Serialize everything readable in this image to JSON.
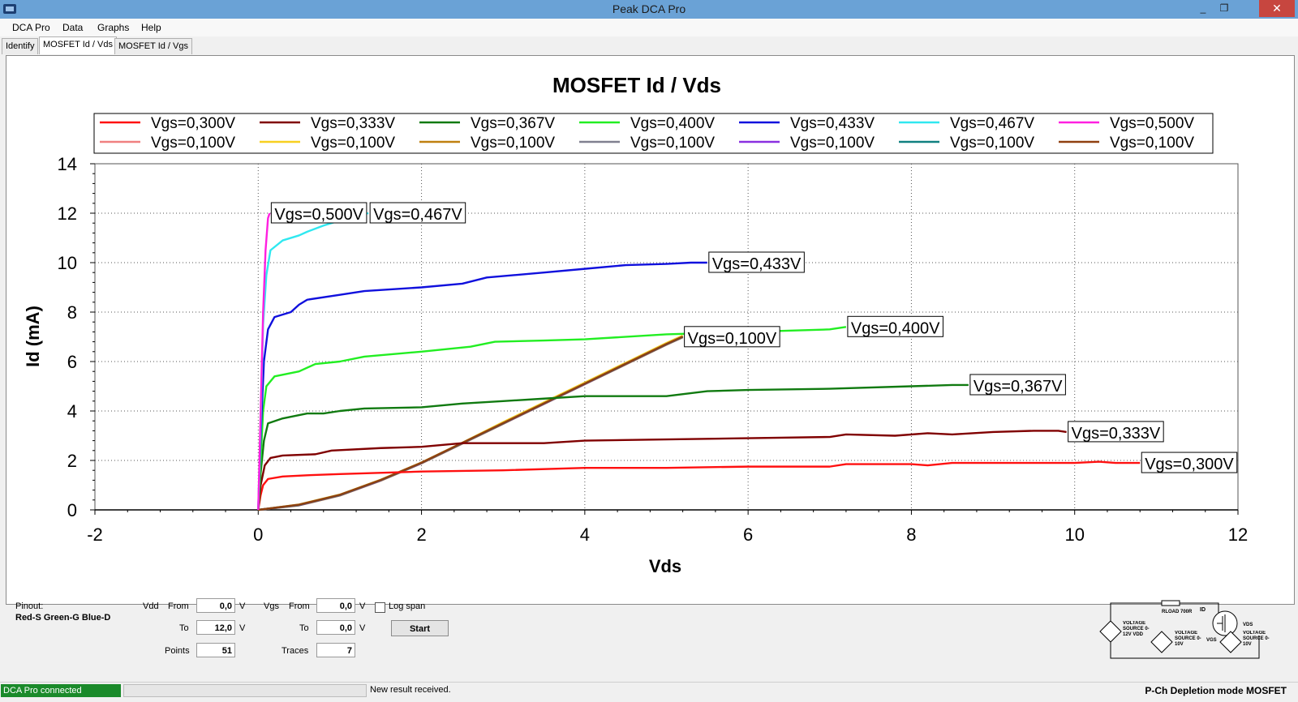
{
  "window": {
    "title": "Peak DCA Pro",
    "minimize": "_",
    "restore": "❐",
    "close": "✕"
  },
  "menu": [
    "DCA Pro",
    "Data",
    "Graphs",
    "Help"
  ],
  "tabs": [
    {
      "label": "Identify",
      "active": false
    },
    {
      "label": "MOSFET Id / Vds",
      "active": true
    },
    {
      "label": "MOSFET Id / Vgs",
      "active": false
    }
  ],
  "chart_data": {
    "type": "line",
    "title": "MOSFET Id / Vds",
    "xlabel": "Vds",
    "ylabel": "Id (mA)",
    "xlim": [
      -2,
      12
    ],
    "ylim": [
      0,
      14
    ],
    "x_ticks": [
      -2,
      0,
      2,
      4,
      6,
      8,
      10,
      12
    ],
    "y_ticks": [
      0,
      2,
      4,
      6,
      8,
      10,
      12,
      14
    ],
    "grid": true,
    "legend_position": "top",
    "series": [
      {
        "name": "Vgs=0,300V",
        "color": "#ff1010",
        "label": "Vgs=0,300V",
        "points": [
          [
            0,
            0
          ],
          [
            0.03,
            0.6
          ],
          [
            0.06,
            1.0
          ],
          [
            0.12,
            1.25
          ],
          [
            0.3,
            1.35
          ],
          [
            0.6,
            1.4
          ],
          [
            1,
            1.45
          ],
          [
            2,
            1.55
          ],
          [
            3,
            1.6
          ],
          [
            4,
            1.7
          ],
          [
            5,
            1.7
          ],
          [
            6,
            1.75
          ],
          [
            7,
            1.75
          ],
          [
            7.2,
            1.85
          ],
          [
            8,
            1.85
          ],
          [
            8.2,
            1.8
          ],
          [
            8.5,
            1.9
          ],
          [
            9,
            1.9
          ],
          [
            10,
            1.9
          ],
          [
            10.3,
            1.95
          ],
          [
            10.5,
            1.9
          ],
          [
            10.8,
            1.9
          ]
        ]
      },
      {
        "name": "Vgs=0,333V",
        "color": "#800000",
        "label": "Vgs=0,333V",
        "points": [
          [
            0,
            0
          ],
          [
            0.03,
            1.0
          ],
          [
            0.08,
            1.8
          ],
          [
            0.15,
            2.1
          ],
          [
            0.3,
            2.2
          ],
          [
            0.7,
            2.25
          ],
          [
            0.9,
            2.4
          ],
          [
            1.5,
            2.5
          ],
          [
            2,
            2.55
          ],
          [
            2.5,
            2.7
          ],
          [
            3.5,
            2.7
          ],
          [
            4,
            2.8
          ],
          [
            5,
            2.85
          ],
          [
            6,
            2.9
          ],
          [
            7,
            2.95
          ],
          [
            7.2,
            3.05
          ],
          [
            7.8,
            3.0
          ],
          [
            8.2,
            3.1
          ],
          [
            8.5,
            3.05
          ],
          [
            9,
            3.15
          ],
          [
            9.5,
            3.2
          ],
          [
            9.8,
            3.2
          ],
          [
            9.9,
            3.15
          ]
        ]
      },
      {
        "name": "Vgs=0,367V",
        "color": "#107a10",
        "label": "Vgs=0,367V",
        "points": [
          [
            0,
            0
          ],
          [
            0.03,
            1.5
          ],
          [
            0.07,
            2.8
          ],
          [
            0.12,
            3.5
          ],
          [
            0.3,
            3.7
          ],
          [
            0.6,
            3.9
          ],
          [
            0.8,
            3.9
          ],
          [
            1,
            4.0
          ],
          [
            1.3,
            4.1
          ],
          [
            2,
            4.15
          ],
          [
            2.5,
            4.3
          ],
          [
            3,
            4.4
          ],
          [
            3.5,
            4.5
          ],
          [
            4,
            4.6
          ],
          [
            5,
            4.6
          ],
          [
            5.5,
            4.8
          ],
          [
            6,
            4.85
          ],
          [
            7,
            4.9
          ],
          [
            8,
            5.0
          ],
          [
            8.5,
            5.05
          ],
          [
            8.7,
            5.05
          ]
        ]
      },
      {
        "name": "Vgs=0,400V",
        "color": "#22ee22",
        "label": "Vgs=0,400V",
        "points": [
          [
            0,
            0
          ],
          [
            0.03,
            2.0
          ],
          [
            0.06,
            4.0
          ],
          [
            0.1,
            5.0
          ],
          [
            0.2,
            5.4
          ],
          [
            0.5,
            5.6
          ],
          [
            0.7,
            5.9
          ],
          [
            1,
            6.0
          ],
          [
            1.3,
            6.2
          ],
          [
            2,
            6.4
          ],
          [
            2.6,
            6.6
          ],
          [
            2.9,
            6.8
          ],
          [
            3.5,
            6.85
          ],
          [
            4,
            6.9
          ],
          [
            5,
            7.1
          ],
          [
            6,
            7.2
          ],
          [
            7,
            7.3
          ],
          [
            7.2,
            7.4
          ]
        ]
      },
      {
        "name": "Vgs=0,433V",
        "color": "#1010dd",
        "label": "Vgs=0,433V",
        "points": [
          [
            0,
            0
          ],
          [
            0.03,
            3.0
          ],
          [
            0.07,
            6.0
          ],
          [
            0.12,
            7.3
          ],
          [
            0.2,
            7.8
          ],
          [
            0.4,
            8.0
          ],
          [
            0.5,
            8.3
          ],
          [
            0.6,
            8.5
          ],
          [
            1,
            8.7
          ],
          [
            1.3,
            8.85
          ],
          [
            2,
            9.0
          ],
          [
            2.5,
            9.15
          ],
          [
            2.8,
            9.4
          ],
          [
            3.5,
            9.6
          ],
          [
            4,
            9.75
          ],
          [
            4.5,
            9.9
          ],
          [
            5,
            9.95
          ],
          [
            5.3,
            10.0
          ],
          [
            5.5,
            10.0
          ]
        ]
      },
      {
        "name": "Vgs=0,467V",
        "color": "#30e8f0",
        "label": "Vgs=0,467V",
        "points": [
          [
            0,
            0
          ],
          [
            0.03,
            3.5
          ],
          [
            0.06,
            7.5
          ],
          [
            0.1,
            9.5
          ],
          [
            0.15,
            10.5
          ],
          [
            0.3,
            10.9
          ],
          [
            0.5,
            11.1
          ],
          [
            0.6,
            11.25
          ],
          [
            0.8,
            11.5
          ],
          [
            1,
            11.7
          ],
          [
            1.1,
            11.85
          ],
          [
            1.35,
            12.0
          ]
        ]
      },
      {
        "name": "Vgs=0,500V",
        "color": "#ff20e0",
        "label": "Vgs=0,500V",
        "points": [
          [
            0,
            0
          ],
          [
            0.03,
            4.0
          ],
          [
            0.06,
            8.0
          ],
          [
            0.09,
            10.5
          ],
          [
            0.12,
            11.8
          ],
          [
            0.14,
            12.0
          ]
        ]
      },
      {
        "name": "Vgs=0,100V",
        "color": "#f08080",
        "label": "Vgs=0,100V",
        "points": [
          [
            0,
            0
          ],
          [
            0.5,
            0.2
          ],
          [
            1,
            0.6
          ],
          [
            1.5,
            1.2
          ],
          [
            2,
            1.9
          ],
          [
            2.5,
            2.7
          ],
          [
            3,
            3.5
          ],
          [
            3.5,
            4.3
          ],
          [
            4,
            5.1
          ],
          [
            4.5,
            5.9
          ],
          [
            5,
            6.7
          ],
          [
            5.2,
            7.0
          ]
        ]
      },
      {
        "name": "Vgs=0,100V",
        "color": "#f8d020",
        "label": "Vgs=0,100V",
        "points": [
          [
            0,
            0
          ],
          [
            0.5,
            0.22
          ],
          [
            1,
            0.62
          ],
          [
            1.5,
            1.22
          ],
          [
            2,
            1.92
          ],
          [
            2.5,
            2.72
          ],
          [
            3,
            3.55
          ],
          [
            3.5,
            4.35
          ],
          [
            4,
            5.15
          ],
          [
            4.5,
            5.95
          ],
          [
            5,
            6.75
          ],
          [
            5.2,
            7.05
          ]
        ]
      },
      {
        "name": "Vgs=0,100V",
        "color": "#c08010",
        "label": "Vgs=0,100V",
        "points": [
          [
            0,
            0
          ],
          [
            0.5,
            0.18
          ],
          [
            1,
            0.58
          ],
          [
            1.5,
            1.18
          ],
          [
            2,
            1.88
          ],
          [
            2.5,
            2.68
          ],
          [
            3,
            3.48
          ],
          [
            3.5,
            4.28
          ],
          [
            4,
            5.08
          ],
          [
            4.5,
            5.88
          ],
          [
            5,
            6.68
          ],
          [
            5.2,
            6.98
          ]
        ]
      },
      {
        "name": "Vgs=0,100V",
        "color": "#808090",
        "label": "Vgs=0,100V",
        "points": [
          [
            0,
            0
          ],
          [
            0.5,
            0.21
          ],
          [
            1,
            0.61
          ],
          [
            1.5,
            1.21
          ],
          [
            2,
            1.91
          ],
          [
            2.5,
            2.71
          ],
          [
            3,
            3.51
          ],
          [
            3.5,
            4.31
          ],
          [
            4,
            5.11
          ],
          [
            4.5,
            5.91
          ],
          [
            5,
            6.71
          ],
          [
            5.2,
            7.01
          ]
        ]
      },
      {
        "name": "Vgs=0,100V",
        "color": "#8a30e0",
        "label": "Vgs=0,100V",
        "points": [
          [
            0,
            0
          ],
          [
            0.5,
            0.19
          ],
          [
            1,
            0.59
          ],
          [
            1.5,
            1.19
          ],
          [
            2,
            1.89
          ],
          [
            2.5,
            2.69
          ],
          [
            3,
            3.49
          ],
          [
            3.5,
            4.29
          ],
          [
            4,
            5.09
          ],
          [
            4.5,
            5.89
          ],
          [
            5,
            6.69
          ],
          [
            5.2,
            6.99
          ]
        ]
      },
      {
        "name": "Vgs=0,100V",
        "color": "#108080",
        "label": "Vgs=0,100V",
        "points": [
          [
            0,
            0
          ],
          [
            0.5,
            0.2
          ],
          [
            1,
            0.6
          ],
          [
            1.5,
            1.2
          ],
          [
            2,
            1.9
          ],
          [
            2.5,
            2.7
          ],
          [
            3,
            3.5
          ],
          [
            3.5,
            4.3
          ],
          [
            4,
            5.1
          ],
          [
            4.5,
            5.9
          ],
          [
            5,
            6.7
          ],
          [
            5.2,
            7.0
          ]
        ]
      },
      {
        "name": "Vgs=0,100V",
        "color": "#904010",
        "label": "Vgs=0,100V",
        "points": [
          [
            0,
            0
          ],
          [
            0.5,
            0.21
          ],
          [
            1,
            0.61
          ],
          [
            1.5,
            1.21
          ],
          [
            2,
            1.91
          ],
          [
            2.5,
            2.71
          ],
          [
            3,
            3.51
          ],
          [
            3.5,
            4.31
          ],
          [
            4,
            5.11
          ],
          [
            4.5,
            5.91
          ],
          [
            5,
            6.71
          ],
          [
            5.2,
            7.01
          ]
        ]
      }
    ]
  },
  "settings": {
    "pinout_label": "Pinout:",
    "pinout_value": "Red-S Green-G Blue-D",
    "vdd_label": "Vdd",
    "from_label": "From",
    "to_label": "To",
    "points_label": "Points",
    "vdd_from": "0,0",
    "vdd_to": "12,0",
    "points": "51",
    "unit_v": "V",
    "vgs_label": "Vgs",
    "vgs_from": "0,0",
    "vgs_to": "0,0",
    "traces_label": "Traces",
    "traces": "7",
    "log_span_label": "Log span",
    "start_button": "Start"
  },
  "circuit": {
    "rload": "RLOAD 700R",
    "id": "ID",
    "vds": "VDS",
    "vgs": "VGS",
    "source_vdd": "VOLTAGE SOURCE 0-12V VDD",
    "source_2": "VOLTAGE SOURCE 0-10V",
    "source_3": "VOLTAGE SOURCE 0-10V"
  },
  "status": {
    "connection": "DCA Pro connected",
    "message": "New result received.",
    "device_type": "P-Ch Depletion mode MOSFET"
  }
}
